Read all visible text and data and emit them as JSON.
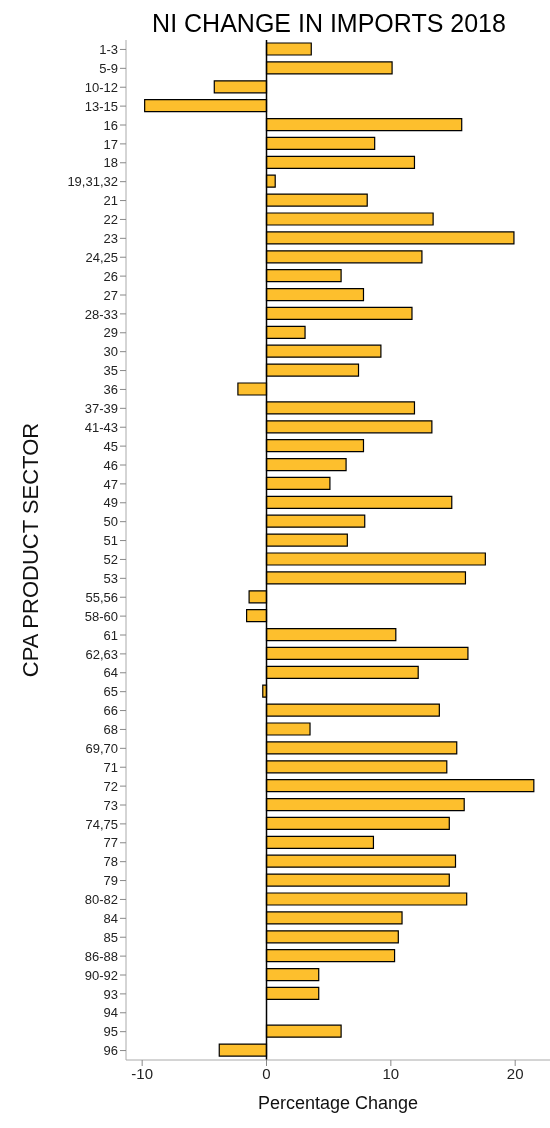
{
  "chart_data": {
    "type": "bar",
    "orientation": "horizontal",
    "title": "NI CHANGE IN IMPORTS 2018",
    "xlabel": "Percentage Change",
    "ylabel": "CPA PRODUCT SECTOR",
    "categories": [
      "1-3",
      "5-9",
      "10-12",
      "13-15",
      "16",
      "17",
      "18",
      "19,31,32",
      "21",
      "22",
      "23",
      "24,25",
      "26",
      "27",
      "28-33",
      "29",
      "30",
      "35",
      "36",
      "37-39",
      "41-43",
      "45",
      "46",
      "47",
      "49",
      "50",
      "51",
      "52",
      "53",
      "55,56",
      "58-60",
      "61",
      "62,63",
      "64",
      "65",
      "66",
      "68",
      "69,70",
      "71",
      "72",
      "73",
      "74,75",
      "77",
      "78",
      "79",
      "80-82",
      "84",
      "85",
      "86-88",
      "90-92",
      "93",
      "94",
      "95",
      "96"
    ],
    "values": [
      3.6,
      10.1,
      -4.2,
      -9.8,
      15.7,
      8.7,
      11.9,
      0.7,
      8.1,
      13.4,
      19.9,
      12.5,
      6.0,
      7.8,
      11.7,
      3.1,
      9.2,
      7.4,
      -2.3,
      11.9,
      13.3,
      7.8,
      6.4,
      5.1,
      14.9,
      7.9,
      6.5,
      17.6,
      16.0,
      -1.4,
      -1.6,
      10.4,
      16.2,
      12.2,
      -0.3,
      13.9,
      3.5,
      15.3,
      14.5,
      21.5,
      15.9,
      14.7,
      8.6,
      15.2,
      14.7,
      16.1,
      10.9,
      10.6,
      10.3,
      4.2,
      4.2,
      null,
      6.0,
      -3.8
    ],
    "color": "#fdbf2d",
    "xlim": [
      -11.3,
      22.8
    ],
    "xticks": [
      -10,
      0,
      10,
      20
    ],
    "ref_lines": [
      {
        "axis": "x",
        "value": 0,
        "color": "#000000"
      }
    ],
    "grid": false,
    "legend": false
  }
}
